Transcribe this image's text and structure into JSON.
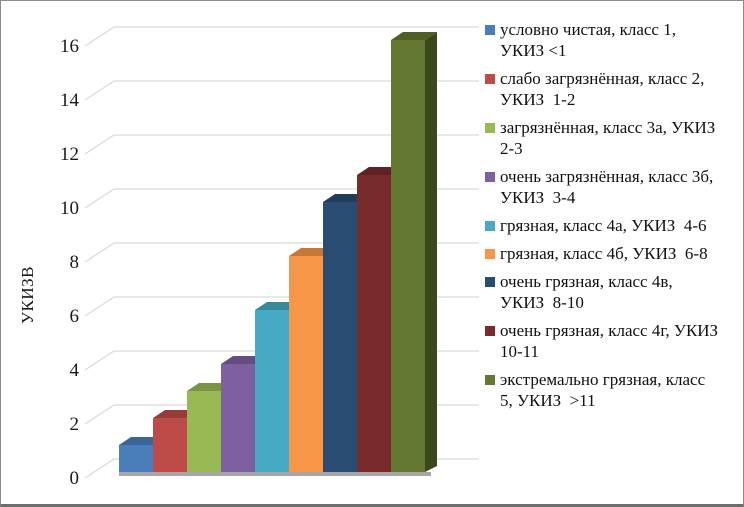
{
  "chart_data": {
    "type": "bar",
    "style": "3d",
    "title": "",
    "xlabel": "",
    "ylabel": "УКИЗВ",
    "ylim": [
      0,
      16
    ],
    "yticks": [
      0,
      2,
      4,
      6,
      8,
      10,
      12,
      14,
      16
    ],
    "grid": true,
    "legend_position": "right",
    "axis_text_color": "#1a1a1a",
    "gridline_color": "#d9d9d9",
    "floor_color": "#a6a6a6",
    "bars": [
      {
        "label": "условно чистая, класс 1, УКИЗ <1",
        "value": 1,
        "color": "#4a7ebb"
      },
      {
        "label": "слабо загрязнённая, класс 2, УКИЗ  1-2",
        "value": 2,
        "color": "#be4b48"
      },
      {
        "label": "загрязнённая, класс 3а, УКИЗ  2-3",
        "value": 3,
        "color": "#98b954"
      },
      {
        "label": "очень загрязнённая, класс 3б, УКИЗ  3-4",
        "value": 4,
        "color": "#7d60a0"
      },
      {
        "label": "грязная, класс 4а, УКИЗ  4-6",
        "value": 6,
        "color": "#46aac5"
      },
      {
        "label": "грязная, класс 4б, УКИЗ  6-8",
        "value": 8,
        "color": "#f79646"
      },
      {
        "label": "очень грязная, класс 4в, УКИЗ  8-10",
        "value": 10,
        "color": "#2a4c72"
      },
      {
        "label": "очень грязная, класс 4г, УКИЗ  10-11",
        "value": 11,
        "color": "#772b2b"
      },
      {
        "label": "экстремально грязная, класс 5, УКИЗ  >11",
        "value": 16,
        "color": "#637831"
      }
    ]
  }
}
